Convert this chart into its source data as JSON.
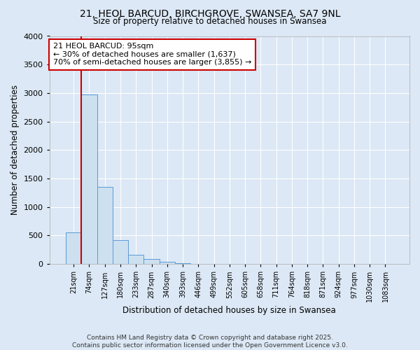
{
  "title": "21, HEOL BARCUD, BIRCHGROVE, SWANSEA, SA7 9NL",
  "subtitle": "Size of property relative to detached houses in Swansea",
  "xlabel": "Distribution of detached houses by size in Swansea",
  "ylabel": "Number of detached properties",
  "bins": [
    "21sqm",
    "74sqm",
    "127sqm",
    "180sqm",
    "233sqm",
    "287sqm",
    "340sqm",
    "393sqm",
    "446sqm",
    "499sqm",
    "552sqm",
    "605sqm",
    "658sqm",
    "711sqm",
    "764sqm",
    "818sqm",
    "871sqm",
    "924sqm",
    "977sqm",
    "1030sqm",
    "1083sqm"
  ],
  "values": [
    560,
    2980,
    1350,
    420,
    165,
    90,
    45,
    20,
    8,
    5,
    3,
    2,
    1,
    1,
    1,
    0,
    0,
    0,
    0,
    0,
    0
  ],
  "bar_color": "#cce0f0",
  "bar_edge_color": "#5b9bd5",
  "background_color": "#dce8f5",
  "grid_color": "#ffffff",
  "red_line_x": 1,
  "annotation_text": "21 HEOL BARCUD: 95sqm\n← 30% of detached houses are smaller (1,637)\n70% of semi-detached houses are larger (3,855) →",
  "annotation_box_color": "#ffffff",
  "annotation_border_color": "#cc0000",
  "red_line_color": "#cc0000",
  "ylim": [
    0,
    4000
  ],
  "yticks": [
    0,
    500,
    1000,
    1500,
    2000,
    2500,
    3000,
    3500,
    4000
  ],
  "footer": "Contains HM Land Registry data © Crown copyright and database right 2025.\nContains public sector information licensed under the Open Government Licence v3.0."
}
